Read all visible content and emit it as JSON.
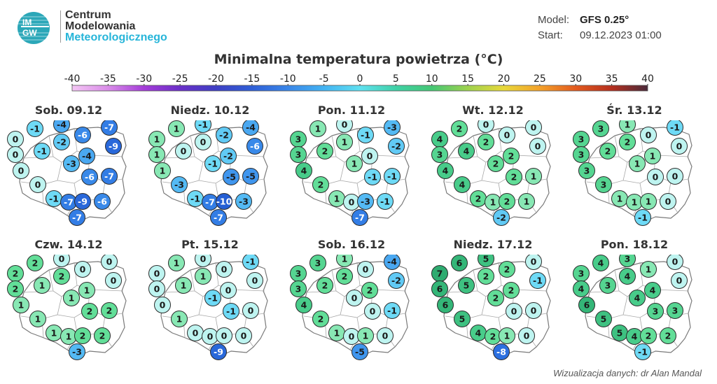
{
  "logo": {
    "text_top": "IM",
    "text_bottom": "GW"
  },
  "brand": {
    "line1": "Centrum",
    "line2": "Modelowania",
    "line3": "Meteorologicznego"
  },
  "meta": {
    "model_label": "Model:",
    "model_value": "GFS 0.25°",
    "start_label": "Start:",
    "start_value": "09.12.2023 01:00"
  },
  "title": "Minimalna temperatura powietrza (°C)",
  "colorbar": {
    "ticks": [
      "-40",
      "-35",
      "-30",
      "-25",
      "-20",
      "-15",
      "-10",
      "-5",
      "0",
      "5",
      "10",
      "15",
      "20",
      "25",
      "30",
      "35",
      "40"
    ],
    "stops": [
      "#f4c6f4",
      "#d98ce8",
      "#a43cd8",
      "#6a2fc8",
      "#3e3fc4",
      "#2f5fd6",
      "#3a86e8",
      "#43b3f2",
      "#5fe0f0",
      "#3fd1a6",
      "#45c774",
      "#9ed24e",
      "#e8d83a",
      "#f3a12a",
      "#e25a1e",
      "#b52f1f",
      "#4a2a3a"
    ]
  },
  "credit": "Wizualizacja danych: dr Alan Mandal",
  "panels": [
    {
      "day": "Sob. 09.12",
      "values": [
        -1,
        -4,
        -7,
        0,
        -6,
        -9,
        0,
        -1,
        -2,
        -4,
        0,
        -3,
        -7,
        0,
        -6,
        -1,
        -7,
        -9,
        -6,
        -7
      ]
    },
    {
      "day": "Niedz. 10.12",
      "values": [
        1,
        -1,
        -4,
        1,
        -2,
        -6,
        1,
        0,
        0,
        -2,
        1,
        -1,
        -5,
        -3,
        -5,
        -1,
        -7,
        -10,
        -3,
        -7
      ]
    },
    {
      "day": "Pon. 11.12",
      "values": [
        1,
        0,
        -3,
        3,
        -1,
        -2,
        3,
        2,
        1,
        0,
        4,
        1,
        -1,
        2,
        -1,
        1,
        0,
        -3,
        -1,
        -7
      ]
    },
    {
      "day": "Wt. 12.12",
      "values": [
        2,
        0,
        0,
        4,
        0,
        0,
        3,
        4,
        2,
        2,
        4,
        2,
        1,
        4,
        2,
        2,
        1,
        2,
        1,
        -2
      ]
    },
    {
      "day": "Śr. 13.12",
      "values": [
        3,
        1,
        -1,
        3,
        0,
        0,
        3,
        2,
        2,
        1,
        3,
        1,
        0,
        3,
        0,
        1,
        1,
        1,
        0,
        -1
      ]
    },
    {
      "day": "Czw. 14.12",
      "values": [
        2,
        0,
        0,
        2,
        0,
        0,
        2,
        1,
        2,
        1,
        1,
        1,
        2,
        1,
        2,
        1,
        1,
        2,
        2,
        -3
      ]
    },
    {
      "day": "Pt. 15.12",
      "values": [
        1,
        0,
        -1,
        0,
        0,
        0,
        0,
        1,
        1,
        0,
        0,
        -1,
        0,
        1,
        -1,
        0,
        0,
        0,
        0,
        -9
      ]
    },
    {
      "day": "Sob. 16.12",
      "values": [
        3,
        1,
        -4,
        3,
        0,
        -2,
        3,
        2,
        2,
        2,
        4,
        0,
        -1,
        2,
        0,
        1,
        0,
        1,
        0,
        -5
      ]
    },
    {
      "day": "Niedz. 17.12",
      "values": [
        6,
        5,
        0,
        7,
        2,
        -1,
        6,
        5,
        2,
        2,
        6,
        2,
        0,
        5,
        0,
        4,
        2,
        1,
        0,
        -8
      ]
    },
    {
      "day": "Pon. 18.12",
      "values": [
        4,
        3,
        0,
        3,
        1,
        0,
        4,
        3,
        4,
        4,
        6,
        4,
        3,
        5,
        3,
        5,
        4,
        2,
        2,
        -1
      ]
    }
  ]
}
